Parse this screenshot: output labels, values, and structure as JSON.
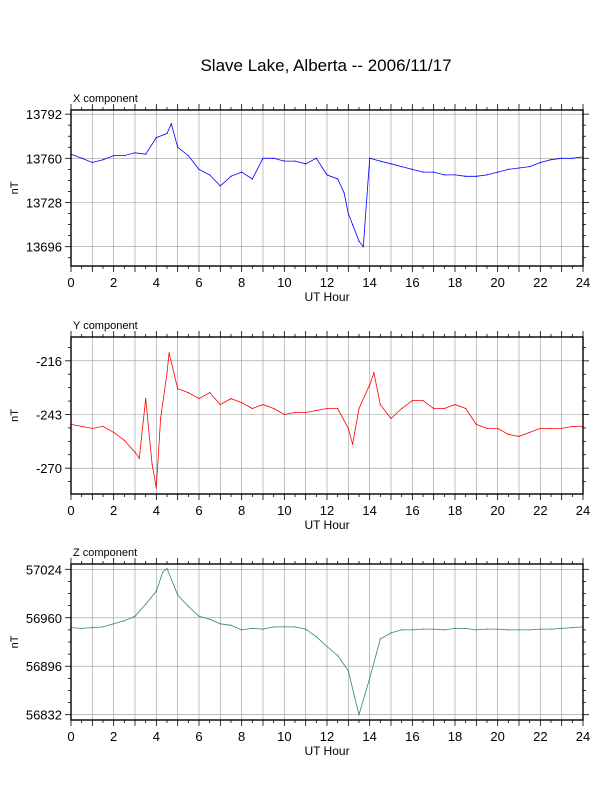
{
  "title": "Slave Lake, Alberta -- 2006/11/17",
  "chart_data": [
    {
      "type": "line",
      "name": "X component",
      "title": "X component",
      "xlabel": "UT Hour",
      "ylabel": "nT",
      "color": "#0000ff",
      "xlim": [
        0,
        24
      ],
      "ylim": [
        13682,
        13795
      ],
      "xticks": [
        0,
        2,
        4,
        6,
        8,
        10,
        12,
        14,
        16,
        18,
        20,
        22,
        24
      ],
      "yticks": [
        13696,
        13728,
        13760,
        13792
      ],
      "grid": true,
      "x": [
        0,
        0.5,
        1,
        1.5,
        2,
        2.5,
        3,
        3.5,
        4,
        4.5,
        4.7,
        5,
        5.5,
        6,
        6.5,
        7,
        7.5,
        8,
        8.5,
        9,
        9.5,
        10,
        10.5,
        11,
        11.5,
        12,
        12.5,
        12.8,
        13,
        13.2,
        13.5,
        13.7,
        14,
        14.5,
        15,
        15.5,
        16,
        16.5,
        17,
        17.5,
        18,
        18.5,
        19,
        19.5,
        20,
        20.5,
        21,
        21.5,
        22,
        22.5,
        23,
        23.5,
        24
      ],
      "values": [
        13763,
        13760,
        13757,
        13759,
        13762,
        13762,
        13764,
        13763,
        13775,
        13778,
        13785,
        13768,
        13762,
        13752,
        13748,
        13740,
        13747,
        13750,
        13745,
        13760,
        13760,
        13758,
        13758,
        13756,
        13760,
        13748,
        13745,
        13735,
        13720,
        13712,
        13700,
        13696,
        13760,
        13758,
        13756,
        13754,
        13752,
        13750,
        13750,
        13748,
        13748,
        13747,
        13747,
        13748,
        13750,
        13752,
        13753,
        13754,
        13757,
        13759,
        13760,
        13760,
        13761
      ]
    },
    {
      "type": "line",
      "name": "Y component",
      "title": "Y component",
      "xlabel": "UT Hour",
      "ylabel": "nT",
      "color": "#ff0000",
      "xlim": [
        0,
        24
      ],
      "ylim": [
        -283,
        -204
      ],
      "xticks": [
        0,
        2,
        4,
        6,
        8,
        10,
        12,
        14,
        16,
        18,
        20,
        22,
        24
      ],
      "yticks": [
        -216,
        -243,
        -270
      ],
      "grid": true,
      "x": [
        0,
        0.5,
        1,
        1.5,
        2,
        2.5,
        3,
        3.2,
        3.5,
        3.8,
        4,
        4.2,
        4.5,
        4.6,
        5,
        5.5,
        6,
        6.5,
        7,
        7.5,
        8,
        8.5,
        9,
        9.5,
        10,
        10.5,
        11,
        11.5,
        12,
        12.5,
        13,
        13.2,
        13.5,
        14,
        14.2,
        14.5,
        15,
        15.5,
        16,
        16.5,
        17,
        17.5,
        18,
        18.5,
        19,
        19.5,
        20,
        20.5,
        21,
        21.5,
        22,
        22.5,
        23,
        23.5,
        24
      ],
      "values": [
        -248,
        -249,
        -250,
        -249,
        -252,
        -256,
        -262,
        -265,
        -235,
        -268,
        -280,
        -245,
        -222,
        -212,
        -230,
        -232,
        -235,
        -232,
        -238,
        -235,
        -237,
        -240,
        -238,
        -240,
        -243,
        -242,
        -242,
        -241,
        -240,
        -240,
        -250,
        -258,
        -240,
        -228,
        -222,
        -238,
        -245,
        -240,
        -236,
        -236,
        -240,
        -240,
        -238,
        -240,
        -248,
        -250,
        -250,
        -253,
        -254,
        -252,
        -250,
        -250,
        -250,
        -249,
        -249
      ]
    },
    {
      "type": "line",
      "name": "Z component",
      "title": "Z component",
      "xlabel": "UT Hour",
      "ylabel": "nT",
      "color": "#2e8b57",
      "xlim": [
        0,
        24
      ],
      "ylim": [
        56825,
        57031
      ],
      "xticks": [
        0,
        2,
        4,
        6,
        8,
        10,
        12,
        14,
        16,
        18,
        20,
        22,
        24
      ],
      "yticks": [
        56832,
        56896,
        56960,
        57024
      ],
      "grid": true,
      "x": [
        0,
        0.5,
        1,
        1.5,
        2,
        2.5,
        3,
        3.5,
        4,
        4.3,
        4.5,
        5,
        5.5,
        6,
        6.5,
        7,
        7.5,
        8,
        8.5,
        9,
        9.5,
        10,
        10.5,
        11,
        11.5,
        12,
        12.5,
        13,
        13.3,
        13.5,
        14,
        14.5,
        15,
        15.5,
        16,
        16.5,
        17,
        17.5,
        18,
        18.5,
        19,
        19.5,
        20,
        20.5,
        21,
        21.5,
        22,
        22.5,
        23,
        23.5,
        24
      ],
      "values": [
        56947,
        56946,
        56947,
        56948,
        56952,
        56956,
        56962,
        56978,
        56995,
        57020,
        57025,
        56990,
        56975,
        56962,
        56958,
        56952,
        56950,
        56944,
        56946,
        56945,
        56948,
        56948,
        56948,
        56945,
        56935,
        56922,
        56910,
        56890,
        56855,
        56832,
        56880,
        56932,
        56940,
        56944,
        56944,
        56945,
        56945,
        56944,
        56946,
        56946,
        56944,
        56945,
        56945,
        56944,
        56944,
        56944,
        56945,
        56945,
        56946,
        56947,
        56948
      ]
    }
  ]
}
